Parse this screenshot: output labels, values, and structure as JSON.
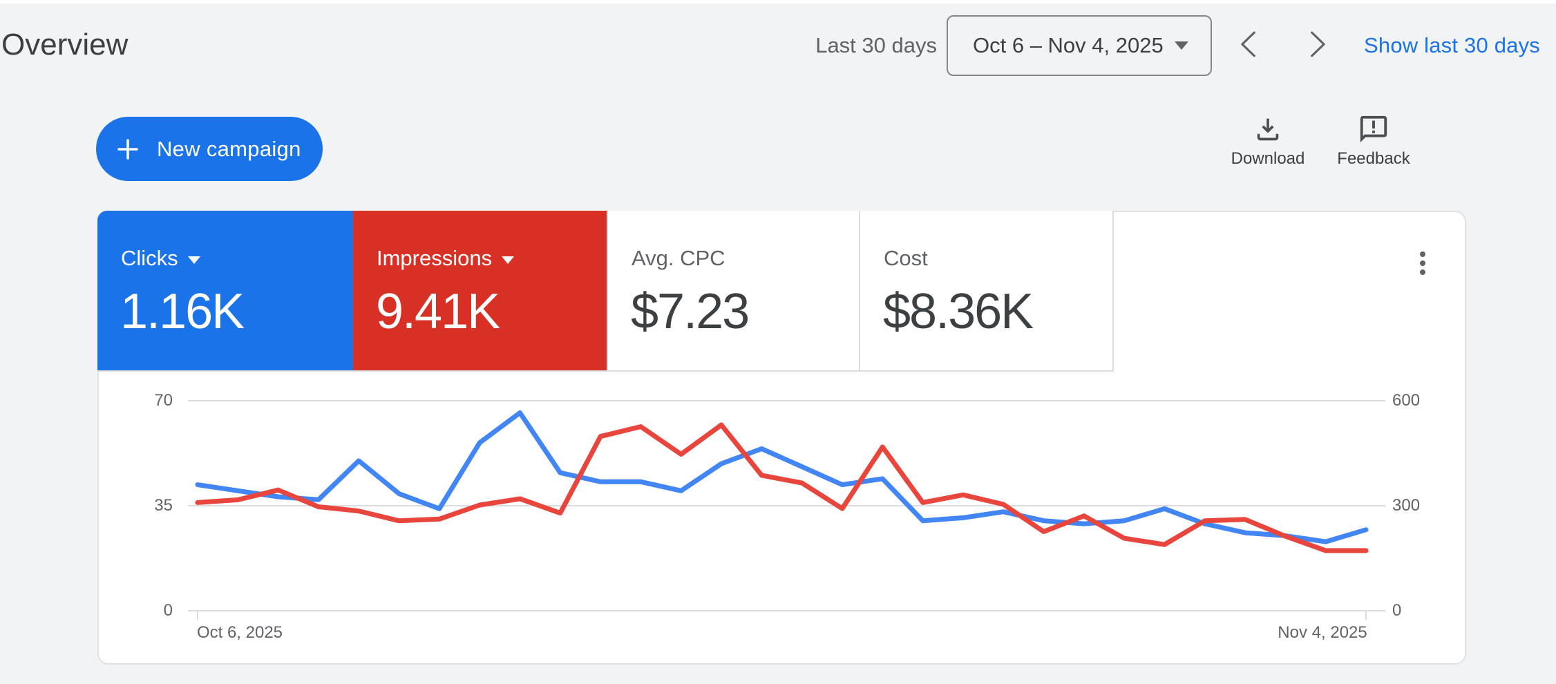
{
  "header": {
    "title": "Overview",
    "range_type_label": "Last 30 days",
    "date_range": "Oct 6 – Nov 4, 2025",
    "show_last_link": "Show last 30 days"
  },
  "actions": {
    "new_campaign_label": "New campaign",
    "download_label": "Download",
    "feedback_label": "Feedback"
  },
  "metrics": [
    {
      "label": "Clicks",
      "value": "1.16K",
      "selected": true,
      "color": "#1a73e8"
    },
    {
      "label": "Impressions",
      "value": "9.41K",
      "selected": true,
      "color": "#d93025"
    },
    {
      "label": "Avg. CPC",
      "value": "$7.23",
      "selected": false
    },
    {
      "label": "Cost",
      "value": "$8.36K",
      "selected": false
    }
  ],
  "chart_data": {
    "type": "line",
    "num_points": 30,
    "x_labels": [
      "Oct 6, 2025",
      "Nov 4, 2025"
    ],
    "left_axis": {
      "series": "Clicks",
      "ticks": [
        0,
        35,
        70
      ],
      "range": [
        0,
        70
      ]
    },
    "right_axis": {
      "series": "Impressions",
      "ticks": [
        0,
        300,
        600
      ],
      "range": [
        0,
        600
      ]
    },
    "grid": true,
    "series": [
      {
        "name": "Clicks",
        "axis": "left",
        "color": "#4285f4",
        "values": [
          42,
          40,
          38,
          37,
          50,
          39,
          34,
          56,
          66,
          46,
          43,
          43,
          40,
          49,
          54,
          48,
          42,
          44,
          30,
          31,
          33,
          30,
          29,
          30,
          34,
          29,
          26,
          25,
          23,
          27
        ]
      },
      {
        "name": "Impressions",
        "axis": "right",
        "color": "#e8453c",
        "values": [
          309,
          317,
          345,
          297,
          285,
          257,
          262,
          302,
          320,
          279,
          498,
          526,
          447,
          531,
          387,
          365,
          292,
          468,
          309,
          331,
          304,
          226,
          271,
          207,
          189,
          257,
          261,
          213,
          172,
          172
        ]
      }
    ]
  }
}
